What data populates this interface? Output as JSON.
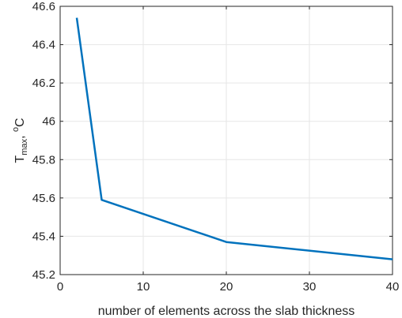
{
  "chart_data": {
    "type": "line",
    "title": "",
    "xlabel": "number of elements across the slab thickness",
    "ylabel": {
      "main": "T",
      "sub": "max",
      "sep": ", ",
      "sup": "o",
      "unit": "C"
    },
    "xlim": [
      0,
      40
    ],
    "ylim": [
      45.2,
      46.6
    ],
    "xticks": [
      0,
      10,
      20,
      30,
      40
    ],
    "yticks": [
      45.2,
      45.4,
      45.6,
      45.8,
      46,
      46.2,
      46.4,
      46.6
    ],
    "xtick_labels": [
      "0",
      "10",
      "20",
      "30",
      "40"
    ],
    "ytick_labels": [
      "45.2",
      "45.4",
      "45.6",
      "45.8",
      "46",
      "46.2",
      "46.4",
      "46.6"
    ],
    "grid": true,
    "line_color": "#0072BD",
    "series": [
      {
        "x": [
          2,
          5,
          20,
          40
        ],
        "y": [
          46.54,
          45.59,
          45.37,
          45.28
        ]
      }
    ]
  }
}
